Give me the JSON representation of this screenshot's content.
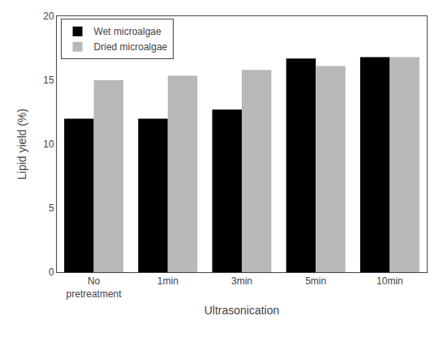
{
  "chart_data": {
    "type": "bar",
    "categories": [
      "No\npretreatment",
      "1min",
      "3min",
      "5min",
      "10min"
    ],
    "series": [
      {
        "name": "Wet microalgae",
        "color": "#000000",
        "values": [
          12.0,
          12.0,
          12.7,
          16.7,
          16.8
        ]
      },
      {
        "name": "Dried microalgae",
        "color": "#b8b8b8",
        "values": [
          15.0,
          15.35,
          15.8,
          16.1,
          16.8
        ]
      }
    ],
    "xlabel": "Ultrasonication",
    "ylabel": "Lipid yield (%)",
    "ylim": [
      0,
      20
    ],
    "yticks": [
      0,
      5,
      10,
      15,
      20
    ],
    "grid": false,
    "legend": "upper left"
  }
}
